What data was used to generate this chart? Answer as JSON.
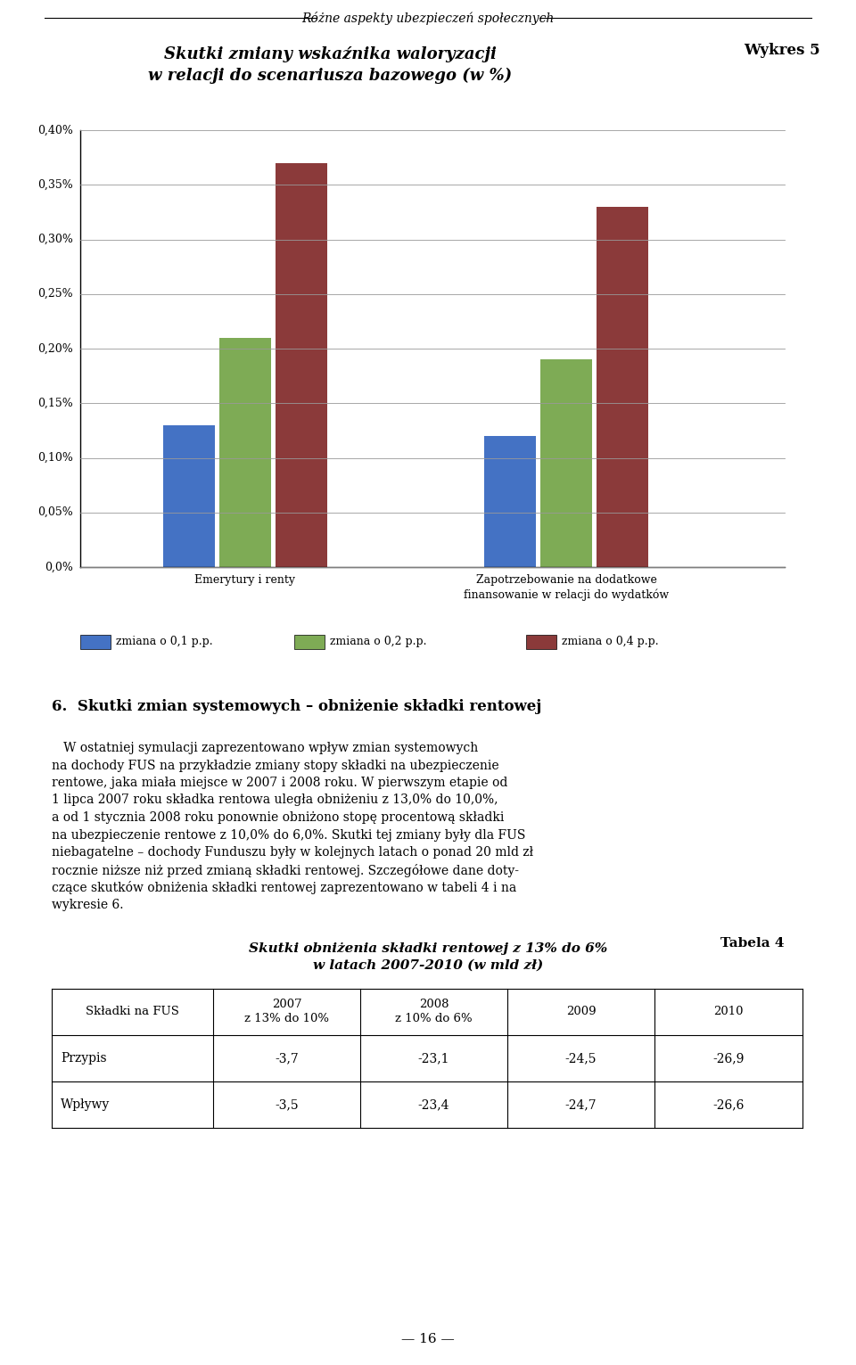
{
  "header_line": "Różne aspekty ubezpieczeń społecznych",
  "wykres_label": "Wykres 5",
  "chart_title_line1": "Skutki zmiany wskaźnika waloryzacji",
  "chart_title_line2": "w relacji do scenariusza bazowego (w %)",
  "categories": [
    "Emerytury i renty",
    "Zapotrzebowanie na dodatkowe\nfinansowanie w relacji do wydatków"
  ],
  "series": [
    {
      "label": "zmiana o 0,1 p.p.",
      "color": "#4472C4",
      "values": [
        0.0013,
        0.0012
      ]
    },
    {
      "label": "zmiana o 0,2 p.p.",
      "color": "#7EAB55",
      "values": [
        0.0021,
        0.0019
      ]
    },
    {
      "label": "zmiana o 0,4 p.p.",
      "color": "#8B3A3A",
      "values": [
        0.0037,
        0.0033
      ]
    }
  ],
  "ylim": [
    0.0,
    0.004
  ],
  "yticks": [
    0.0,
    0.0005,
    0.001,
    0.0015,
    0.002,
    0.0025,
    0.003,
    0.0035,
    0.004
  ],
  "ytick_labels": [
    "0,0%",
    "0,05%",
    "0,10%",
    "0,15%",
    "0,20%",
    "0,25%",
    "0,30%",
    "0,35%",
    "0,40%"
  ],
  "section_title": "6.  Skutki zmian systemowych – obniżenie składki rentowej",
  "body_lines": [
    "   W ostatniej symulacji zaprezentowano wpływ zmian systemowych",
    "na dochody FUS na przykładzie zmiany stopy składki na ubezpieczenie",
    "rentowe, jaka miała miejsce w 2007 i 2008 roku. W pierwszym etapie od",
    "1 lipca 2007 roku składka rentowa uległa obniżeniu z 13,0% do 10,0%,",
    "a od 1 stycznia 2008 roku ponownie obniżono stopę procentową składki",
    "na ubezpieczenie rentowe z 10,0% do 6,0%. Skutki tej zmiany były dla FUS",
    "niebagatelne – dochody Funduszu były w kolejnych latach o ponad 20 mld zł",
    "rocznie niższe niż przed zmianą składki rentowej. Szczegółowe dane doty-",
    "czące skutków obniżenia składki rentowej zaprezentowano w tabeli 4 i na",
    "wykresie 6."
  ],
  "tabela_label": "Tabela 4",
  "table_title_line1": "Skutki obniżenia składki rentowej z 13% do 6%",
  "table_title_line2": "w latach 2007-2010 (w mld zł)",
  "table_headers": [
    "Składki na FUS",
    "2007\nz 13% do 10%",
    "2008\nz 10% do 6%",
    "2009",
    "2010"
  ],
  "table_rows": [
    [
      "Przypis",
      "-3,7",
      "-23,1",
      "-24,5",
      "-26,9"
    ],
    [
      "Wpływy",
      "-3,5",
      "-23,4",
      "-24,7",
      "-26,6"
    ]
  ],
  "page_number": "— 16 —",
  "bg_color": "#FFFFFF"
}
